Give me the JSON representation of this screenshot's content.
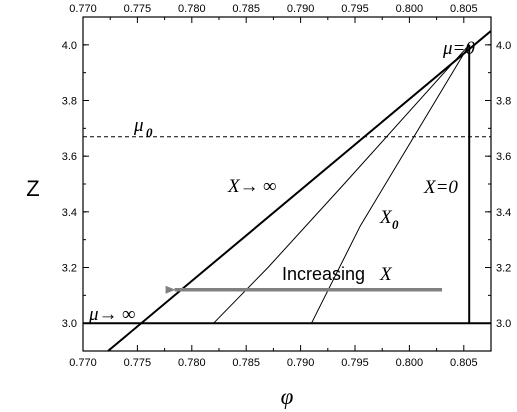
{
  "chart_data": {
    "type": "line",
    "xlabel": "φ",
    "ylabel": "Z",
    "xlim": [
      0.77,
      0.8075
    ],
    "ylim": [
      2.9,
      4.1
    ],
    "x_ticks": [
      "0.770",
      "0.775",
      "0.780",
      "0.785",
      "0.790",
      "0.795",
      "0.800",
      "0.805"
    ],
    "x_tick_values": [
      0.77,
      0.775,
      0.78,
      0.785,
      0.79,
      0.795,
      0.8,
      0.805
    ],
    "y_ticks": [
      "3.0",
      "3.2",
      "3.4",
      "3.6",
      "3.8",
      "4.0"
    ],
    "y_tick_values": [
      3.0,
      3.2,
      3.4,
      3.6,
      3.8,
      4.0
    ],
    "grid": false,
    "series": [
      {
        "name": "μ=0",
        "style": "thick",
        "x": [
          0.7723,
          0.8075
        ],
        "y": [
          2.9,
          4.05
        ]
      },
      {
        "name": "μ→∞",
        "style": "thick",
        "x": [
          0.77,
          0.8075
        ],
        "y": [
          3.0,
          3.0
        ]
      },
      {
        "name": "X=0",
        "style": "thick",
        "x": [
          0.8055,
          0.8055
        ],
        "y": [
          3.0,
          4.0
        ]
      },
      {
        "name": "X→∞",
        "style": "thin",
        "x": [
          0.782,
          0.787,
          0.794,
          0.8055
        ],
        "y": [
          3.0,
          3.2,
          3.5,
          4.0
        ]
      },
      {
        "name": "X₀",
        "style": "thin",
        "x": [
          0.791,
          0.7955,
          0.8055
        ],
        "y": [
          3.0,
          3.35,
          4.0
        ]
      },
      {
        "name": "μ₀",
        "style": "dashed",
        "x": [
          0.77,
          0.8075
        ],
        "y": [
          3.67,
          3.67
        ]
      }
    ],
    "annotations": {
      "mu_zero": "μ=0",
      "mu_inf_prefix": "μ→",
      "mu_sub": "μ",
      "x_inf_prefix": "X→",
      "x_zero": "X=0",
      "x_sub": "X",
      "infinity": "∞",
      "sub0": "0",
      "increasing_text": "Increasing",
      "increasing_var": "X"
    },
    "arrow": {
      "from": [
        0.803,
        3.12
      ],
      "to": [
        0.7775,
        3.12
      ],
      "color": "#808080"
    }
  }
}
